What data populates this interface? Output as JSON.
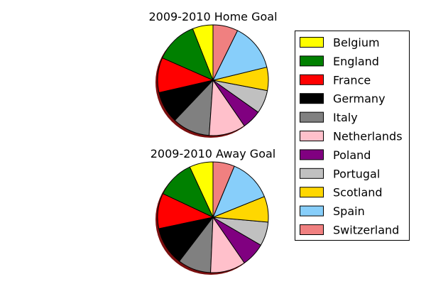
{
  "chart_data": [
    {
      "type": "pie",
      "title": "2009-2010 Home Goal",
      "categories": [
        "Belgium",
        "England",
        "France",
        "Germany",
        "Italy",
        "Netherlands",
        "Poland",
        "Portugal",
        "Scotland",
        "Spain",
        "Switzerland"
      ],
      "values": [
        6.0,
        12.4,
        10.2,
        9.3,
        11.0,
        10.7,
        5.6,
        6.8,
        6.8,
        13.9,
        7.3
      ]
    },
    {
      "type": "pie",
      "title": "2009-2010 Away Goal",
      "categories": [
        "Belgium",
        "England",
        "France",
        "Germany",
        "Italy",
        "Netherlands",
        "Poland",
        "Portugal",
        "Scotland",
        "Spain",
        "Switzerland"
      ],
      "values": [
        6.9,
        11.1,
        10.3,
        11.3,
        9.7,
        10.3,
        7.0,
        7.0,
        7.5,
        12.6,
        6.3
      ]
    }
  ],
  "legend": {
    "placement": "right",
    "entries": [
      "Belgium",
      "England",
      "France",
      "Germany",
      "Italy",
      "Netherlands",
      "Poland",
      "Portugal",
      "Scotland",
      "Spain",
      "Switzerland"
    ]
  },
  "colors": {
    "Belgium": "#ffff00",
    "England": "#008000",
    "France": "#ff0000",
    "Germany": "#000000",
    "Italy": "#808080",
    "Netherlands": "#ffc0cb",
    "Poland": "#800080",
    "Portugal": "#c0c0c0",
    "Scotland": "#ffd700",
    "Spain": "#87cefa",
    "Switzerland": "#f08080"
  },
  "shadow_color": "#7a0f0f",
  "start_angle_deg": 90,
  "direction": "counterclockwise"
}
